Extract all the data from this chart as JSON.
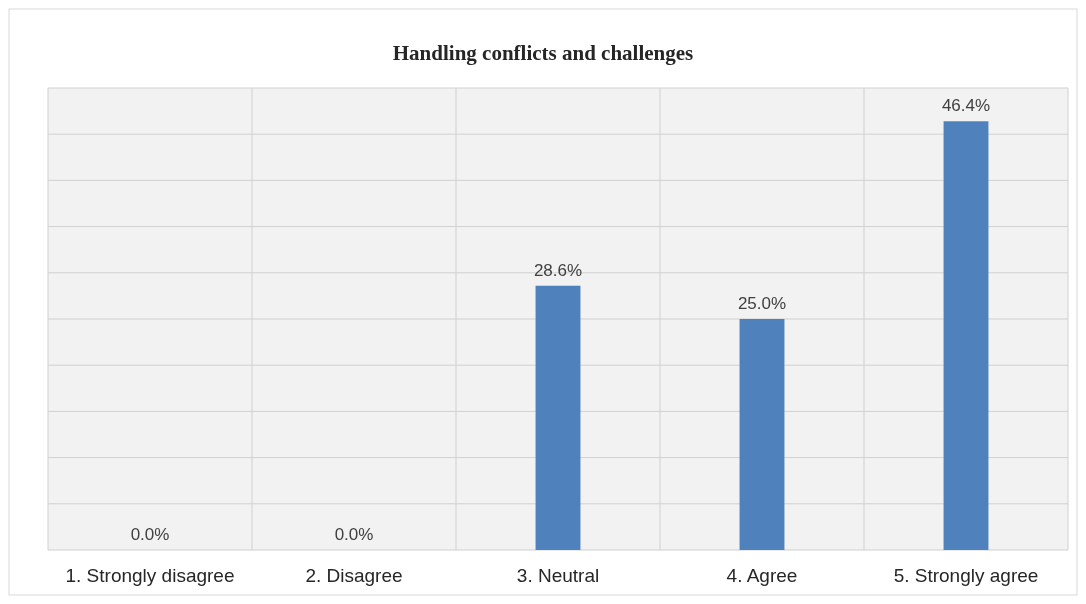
{
  "chart_data": {
    "type": "bar",
    "title": "Handling conflicts and challenges",
    "categories": [
      "1. Strongly disagree",
      "2. Disagree",
      "3. Neutral",
      "4. Agree",
      "5. Strongly agree"
    ],
    "values": [
      0.0,
      0.0,
      28.6,
      25.0,
      46.4
    ],
    "value_labels": [
      "0.0%",
      "0.0%",
      "28.6%",
      "25.0%",
      "46.4%"
    ],
    "color": "#4f81bd",
    "ylim": [
      0,
      50
    ],
    "yticks": [
      {
        "value": 0,
        "label": null
      },
      {
        "value": 5,
        "label": null
      },
      {
        "value": 10,
        "label": null
      },
      {
        "value": 15,
        "label": null
      },
      {
        "value": 20,
        "label": null
      },
      {
        "value": 25,
        "label": null
      },
      {
        "value": 30,
        "label": null
      },
      {
        "value": 35,
        "label": null
      },
      {
        "value": 40,
        "label": null
      },
      {
        "value": 45,
        "label": null
      },
      {
        "value": 50,
        "label": null
      }
    ],
    "tick_labels": "x",
    "grid": true
  }
}
